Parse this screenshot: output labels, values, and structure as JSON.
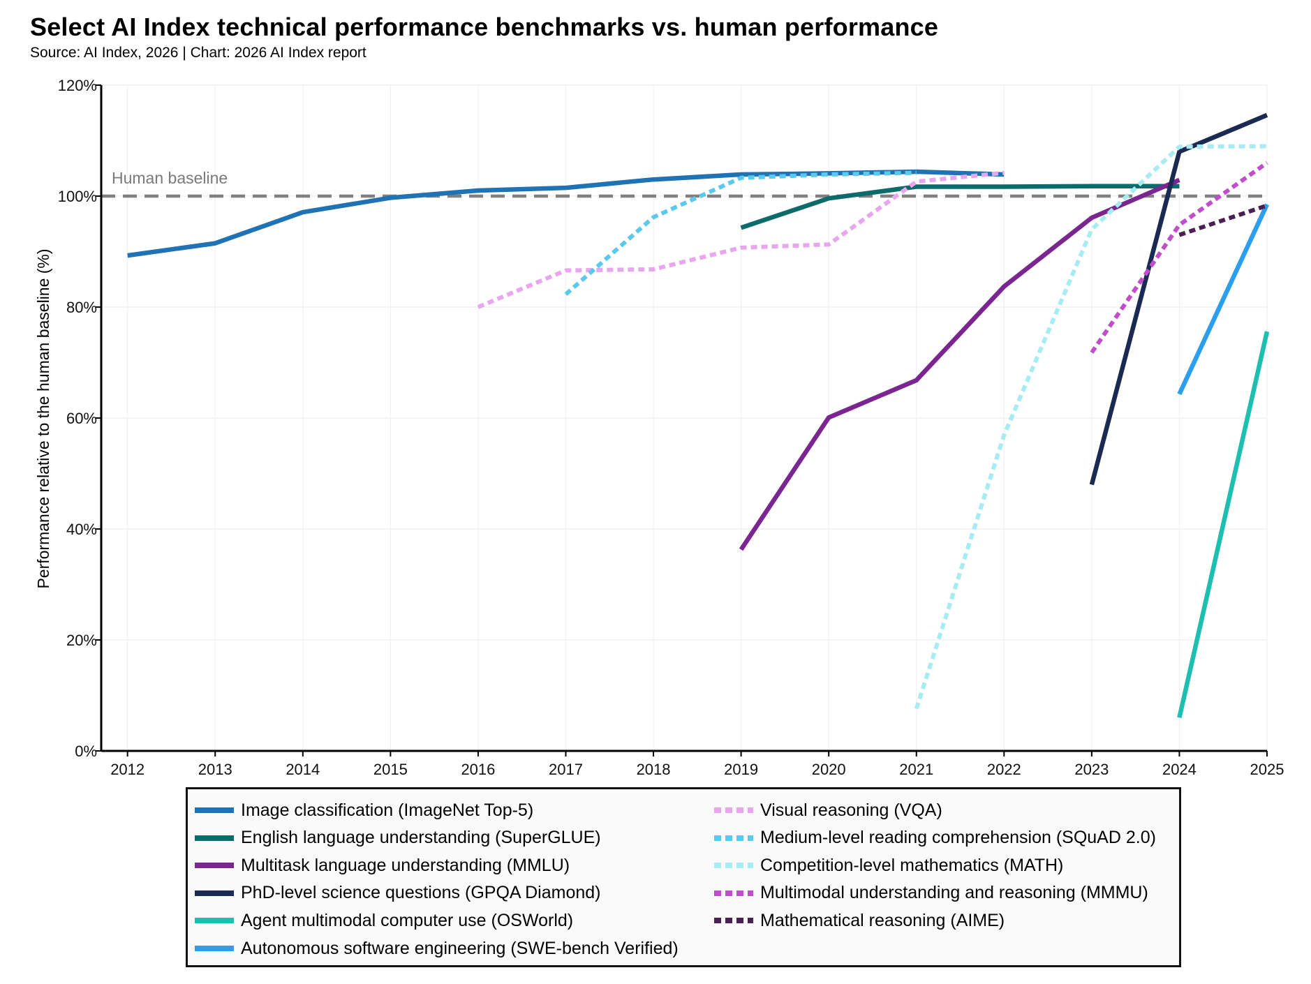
{
  "title": "Select AI Index technical performance benchmarks vs. human performance",
  "subtitle": "Source: AI Index, 2026 | Chart: 2026 AI Index report",
  "chart_data": {
    "type": "line",
    "title": "Select AI Index technical performance benchmarks vs. human performance",
    "xlabel": "",
    "ylabel": "Performance relative to the human baseline (%)",
    "xlim": [
      2011.7,
      2025
    ],
    "ylim": [
      0,
      120
    ],
    "x_ticks": [
      "2012",
      "2013",
      "2014",
      "2015",
      "2016",
      "2017",
      "2018",
      "2019",
      "2020",
      "2021",
      "2022",
      "2023",
      "2024",
      "2025"
    ],
    "y_ticks": [
      "0%",
      "20%",
      "40%",
      "60%",
      "80%",
      "100%",
      "120%"
    ],
    "grid": true,
    "legend_position": "bottom",
    "baseline": {
      "label": "Human baseline",
      "value": 100,
      "color": "#808080"
    },
    "series": [
      {
        "name": "Image classification (ImageNet Top-5)",
        "color": "#1f72b3",
        "dashed": false,
        "x": [
          2012,
          2013,
          2014,
          2015,
          2016,
          2017,
          2018,
          2019,
          2020,
          2021,
          2022
        ],
        "y": [
          89.3,
          91.5,
          97.1,
          99.7,
          101.0,
          101.5,
          103.0,
          103.9,
          104.1,
          104.4,
          103.9
        ]
      },
      {
        "name": "English language understanding (SuperGLUE)",
        "color": "#0d6b6b",
        "dashed": false,
        "x": [
          2019,
          2020,
          2021,
          2022,
          2023,
          2024
        ],
        "y": [
          94.3,
          99.6,
          101.7,
          101.7,
          101.8,
          101.8
        ]
      },
      {
        "name": "Multitask language understanding (MMLU)",
        "color": "#7b2591",
        "dashed": false,
        "x": [
          2019,
          2020,
          2021,
          2022,
          2023,
          2024
        ],
        "y": [
          36.3,
          60.1,
          66.8,
          83.7,
          96.1,
          102.9
        ]
      },
      {
        "name": "PhD-level science questions (GPQA Diamond)",
        "color": "#1a2a52",
        "dashed": false,
        "x": [
          2023,
          2024,
          2025
        ],
        "y": [
          48.0,
          108.0,
          114.6
        ]
      },
      {
        "name": "Agent multimodal computer use (OSWorld)",
        "color": "#1dbfb1",
        "dashed": false,
        "x": [
          2024,
          2025
        ],
        "y": [
          6.0,
          75.6
        ]
      },
      {
        "name": "Autonomous software engineering (SWE-bench Verified)",
        "color": "#2b9ef0",
        "dashed": false,
        "x": [
          2024,
          2025
        ],
        "y": [
          64.3,
          98.5
        ]
      },
      {
        "name": "Visual reasoning (VQA)",
        "color": "#e8a6ee",
        "dashed": true,
        "x": [
          2016,
          2017,
          2018,
          2019,
          2020,
          2021,
          2022
        ],
        "y": [
          80.0,
          86.6,
          86.8,
          90.7,
          91.3,
          102.6,
          104.2
        ]
      },
      {
        "name": "Medium-level reading comprehension (SQuAD 2.0)",
        "color": "#5bc8ee",
        "dashed": true,
        "x": [
          2017,
          2018,
          2019,
          2020,
          2021
        ],
        "y": [
          82.3,
          96.2,
          103.3,
          103.9,
          104.2
        ]
      },
      {
        "name": "Competition-level mathematics (MATH)",
        "color": "#a6ecf2",
        "dashed": true,
        "x": [
          2021,
          2022,
          2023,
          2024,
          2025
        ],
        "y": [
          7.6,
          56.9,
          94.0,
          108.9,
          109.0
        ]
      },
      {
        "name": "Multimodal understanding and reasoning (MMMU)",
        "color": "#c04ecb",
        "dashed": true,
        "x": [
          2023,
          2024,
          2025
        ],
        "y": [
          71.8,
          94.8,
          106.0
        ]
      },
      {
        "name": "Mathematical reasoning (AIME)",
        "color": "#4a1f52",
        "dashed": true,
        "x": [
          2024,
          2025
        ],
        "y": [
          93.0,
          98.3
        ]
      }
    ]
  }
}
